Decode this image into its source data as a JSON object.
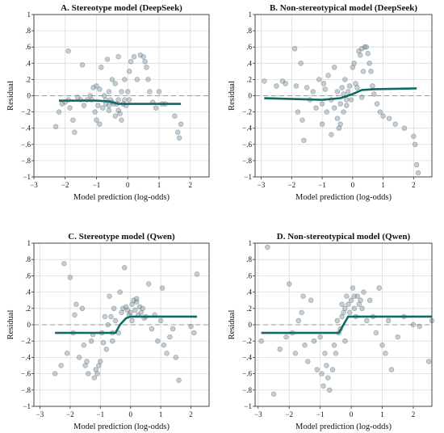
{
  "charts": [
    {
      "title": "A. Stereotype model (DeepSeek)",
      "xlabel": "Model prediction (log-odds)",
      "ylabel": "Residual",
      "xlim": [
        -3,
        2.6
      ],
      "ylim": [
        -1,
        1
      ],
      "xticks": [
        -3,
        -2,
        -1,
        0,
        1,
        2
      ],
      "yticks": [
        -1,
        -0.8,
        -0.6,
        -0.4,
        -0.2,
        0,
        0.2,
        0.4,
        0.6,
        0.8,
        1
      ],
      "points": [
        [
          -2.3,
          -0.38
        ],
        [
          -2.2,
          -0.2
        ],
        [
          -2.1,
          -0.1
        ],
        [
          -2.0,
          -0.08
        ],
        [
          -1.9,
          0.55
        ],
        [
          -1.9,
          -0.05
        ],
        [
          -1.85,
          -0.15
        ],
        [
          -1.75,
          -0.3
        ],
        [
          -1.7,
          -0.45
        ],
        [
          -1.6,
          -0.02
        ],
        [
          -1.5,
          -0.05
        ],
        [
          -1.45,
          0.38
        ],
        [
          -1.4,
          -0.12
        ],
        [
          -1.3,
          -0.05
        ],
        [
          -1.2,
          0.0
        ],
        [
          -1.15,
          -0.05
        ],
        [
          -1.1,
          0.1
        ],
        [
          -1.05,
          -0.2
        ],
        [
          -1.0,
          0.12
        ],
        [
          -1.0,
          -0.3
        ],
        [
          -0.95,
          -0.12
        ],
        [
          -0.9,
          0.08
        ],
        [
          -0.85,
          0.35
        ],
        [
          -0.8,
          -0.15
        ],
        [
          -0.75,
          0.0
        ],
        [
          -0.7,
          -0.05
        ],
        [
          -0.7,
          -0.1
        ],
        [
          -0.65,
          0.45
        ],
        [
          -0.6,
          0.05
        ],
        [
          -0.6,
          -0.18
        ],
        [
          -0.55,
          -0.05
        ],
        [
          -0.5,
          0.2
        ],
        [
          -0.5,
          -0.08
        ],
        [
          -0.45,
          -0.1
        ],
        [
          -0.4,
          0.15
        ],
        [
          -0.4,
          -0.25
        ],
        [
          -0.35,
          -0.1
        ],
        [
          -0.3,
          0.48
        ],
        [
          -0.3,
          -0.05
        ],
        [
          -0.25,
          -0.22
        ],
        [
          -0.2,
          0.05
        ],
        [
          -0.2,
          -0.3
        ],
        [
          -0.15,
          -0.1
        ],
        [
          -0.1,
          -0.05
        ],
        [
          -0.1,
          0.2
        ],
        [
          -0.05,
          -0.12
        ],
        [
          0.0,
          0.05
        ],
        [
          0.05,
          0.3
        ],
        [
          0.1,
          0.42
        ],
        [
          0.2,
          0.48
        ],
        [
          0.3,
          0.2
        ],
        [
          0.4,
          0.5
        ],
        [
          0.5,
          0.48
        ],
        [
          0.55,
          0.42
        ],
        [
          0.6,
          0.35
        ],
        [
          0.65,
          0.2
        ],
        [
          0.7,
          0.05
        ],
        [
          0.8,
          -0.08
        ],
        [
          0.9,
          -0.15
        ],
        [
          1.0,
          0.05
        ],
        [
          1.1,
          -0.1
        ],
        [
          1.2,
          -0.1
        ],
        [
          1.5,
          -0.25
        ],
        [
          1.6,
          -0.45
        ],
        [
          1.65,
          -0.52
        ],
        [
          1.7,
          -0.35
        ],
        [
          -0.9,
          -0.35
        ],
        [
          -0.3,
          -0.18
        ],
        [
          0.05,
          -0.05
        ],
        [
          -0.6,
          -0.12
        ]
      ],
      "curve": [
        [
          -2.2,
          -0.06
        ],
        [
          -1.0,
          -0.06
        ],
        [
          -0.6,
          -0.07
        ],
        [
          -0.3,
          -0.1
        ],
        [
          0.3,
          -0.1
        ],
        [
          1.7,
          -0.1
        ]
      ]
    },
    {
      "title": "B. Non-stereotypical model (DeepSeek)",
      "xlabel": "Model prediction (log-odds)",
      "ylabel": "Residual",
      "xlim": [
        -3.2,
        2.6
      ],
      "ylim": [
        -1,
        1
      ],
      "xticks": [
        -3,
        -2,
        -1,
        0,
        1,
        2
      ],
      "yticks": [
        -1,
        -0.8,
        -0.6,
        -0.4,
        -0.2,
        0,
        0.2,
        0.4,
        0.6,
        0.8,
        1
      ],
      "points": [
        [
          -2.9,
          0.18
        ],
        [
          -2.5,
          0.12
        ],
        [
          -2.3,
          0.18
        ],
        [
          -2.2,
          0.15
        ],
        [
          -1.9,
          0.58
        ],
        [
          -1.85,
          0.12
        ],
        [
          -1.8,
          -0.2
        ],
        [
          -1.7,
          0.4
        ],
        [
          -1.65,
          -0.3
        ],
        [
          -1.6,
          -0.55
        ],
        [
          -1.5,
          0.1
        ],
        [
          -1.4,
          -0.05
        ],
        [
          -1.3,
          0.05
        ],
        [
          -1.2,
          -0.15
        ],
        [
          -1.1,
          0.2
        ],
        [
          -1.0,
          -0.1
        ],
        [
          -1.0,
          -0.35
        ],
        [
          -0.9,
          0.08
        ],
        [
          -0.85,
          -0.2
        ],
        [
          -0.8,
          0.25
        ],
        [
          -0.7,
          -0.05
        ],
        [
          -0.7,
          -0.48
        ],
        [
          -0.6,
          0.35
        ],
        [
          -0.6,
          -0.15
        ],
        [
          -0.5,
          0.05
        ],
        [
          -0.5,
          -0.28
        ],
        [
          -0.45,
          -0.4
        ],
        [
          -0.4,
          -0.1
        ],
        [
          -0.35,
          0.1
        ],
        [
          -0.3,
          0.02
        ],
        [
          -0.3,
          -0.2
        ],
        [
          -0.25,
          0.2
        ],
        [
          -0.2,
          -0.05
        ],
        [
          -0.2,
          -0.12
        ],
        [
          -0.15,
          0.05
        ],
        [
          -0.1,
          0.12
        ],
        [
          -0.05,
          -0.05
        ],
        [
          0.0,
          0.35
        ],
        [
          0.05,
          0.4
        ],
        [
          0.1,
          0.15
        ],
        [
          0.15,
          0.1
        ],
        [
          0.2,
          0.55
        ],
        [
          0.25,
          0.5
        ],
        [
          0.3,
          0.58
        ],
        [
          0.35,
          0.3
        ],
        [
          0.4,
          0.6
        ],
        [
          0.45,
          0.6
        ],
        [
          0.5,
          0.52
        ],
        [
          0.55,
          0.4
        ],
        [
          0.6,
          0.3
        ],
        [
          0.65,
          0.12
        ],
        [
          0.7,
          0.02
        ],
        [
          0.8,
          -0.1
        ],
        [
          0.9,
          -0.2
        ],
        [
          1.0,
          -0.25
        ],
        [
          1.2,
          -0.28
        ],
        [
          1.4,
          -0.35
        ],
        [
          1.7,
          -0.4
        ],
        [
          2.0,
          -0.5
        ],
        [
          2.1,
          -0.85
        ],
        [
          2.15,
          -0.95
        ],
        [
          2.05,
          -0.6
        ],
        [
          -0.95,
          0.15
        ],
        [
          -0.4,
          -0.35
        ],
        [
          0.3,
          -0.02
        ]
      ],
      "curve": [
        [
          -2.9,
          -0.03
        ],
        [
          -1.0,
          -0.05
        ],
        [
          -0.4,
          -0.03
        ],
        [
          0.0,
          0.02
        ],
        [
          0.3,
          0.07
        ],
        [
          0.7,
          0.08
        ],
        [
          2.1,
          0.09
        ]
      ]
    },
    {
      "title": "C. Stereotype model (Qwen)",
      "xlabel": "Model prediction (log-odds)",
      "ylabel": "Residual",
      "xlim": [
        -3.2,
        2.6
      ],
      "ylim": [
        -1,
        1
      ],
      "xticks": [
        -3,
        -2,
        -1,
        0,
        1,
        2
      ],
      "yticks": [
        -1,
        -0.8,
        -0.6,
        -0.4,
        -0.2,
        0,
        0.2,
        0.4,
        0.6,
        0.8,
        1
      ],
      "points": [
        [
          -2.5,
          -0.6
        ],
        [
          -2.3,
          -0.5
        ],
        [
          -2.2,
          0.75
        ],
        [
          -2.1,
          -0.35
        ],
        [
          -2.0,
          0.58
        ],
        [
          -1.9,
          -0.1
        ],
        [
          -1.85,
          0.12
        ],
        [
          -1.8,
          0.25
        ],
        [
          -1.7,
          -0.4
        ],
        [
          -1.6,
          0.2
        ],
        [
          -1.55,
          -0.25
        ],
        [
          -1.5,
          -0.5
        ],
        [
          -1.45,
          -0.45
        ],
        [
          -1.4,
          -0.6
        ],
        [
          -1.3,
          -0.2
        ],
        [
          -1.25,
          -0.12
        ],
        [
          -1.2,
          -0.65
        ],
        [
          -1.15,
          -0.55
        ],
        [
          -1.1,
          -0.6
        ],
        [
          -1.05,
          -0.5
        ],
        [
          -1.0,
          -0.45
        ],
        [
          -0.95,
          -0.1
        ],
        [
          -0.9,
          -0.22
        ],
        [
          -0.85,
          0.1
        ],
        [
          -0.8,
          -0.3
        ],
        [
          -0.75,
          0.0
        ],
        [
          -0.7,
          0.35
        ],
        [
          -0.65,
          0.1
        ],
        [
          -0.6,
          -0.1
        ],
        [
          -0.55,
          0.2
        ],
        [
          -0.5,
          0.05
        ],
        [
          -0.4,
          -0.1
        ],
        [
          -0.3,
          0.15
        ],
        [
          -0.25,
          0.2
        ],
        [
          -0.2,
          0.7
        ],
        [
          -0.15,
          0.22
        ],
        [
          -0.1,
          0.18
        ],
        [
          -0.05,
          0.12
        ],
        [
          0.0,
          0.15
        ],
        [
          0.05,
          0.25
        ],
        [
          0.1,
          0.3
        ],
        [
          0.15,
          0.18
        ],
        [
          0.2,
          0.28
        ],
        [
          0.25,
          0.12
        ],
        [
          0.3,
          0.22
        ],
        [
          0.35,
          0.15
        ],
        [
          0.4,
          0.2
        ],
        [
          0.45,
          0.08
        ],
        [
          0.5,
          0.1
        ],
        [
          0.6,
          0.5
        ],
        [
          0.7,
          -0.05
        ],
        [
          0.8,
          0.12
        ],
        [
          0.9,
          -0.2
        ],
        [
          1.0,
          0.05
        ],
        [
          1.05,
          0.45
        ],
        [
          1.1,
          -0.25
        ],
        [
          1.2,
          -0.35
        ],
        [
          1.3,
          -0.15
        ],
        [
          1.4,
          -0.05
        ],
        [
          1.5,
          -0.4
        ],
        [
          1.6,
          -0.68
        ],
        [
          2.0,
          -0.02
        ],
        [
          2.1,
          -0.1
        ],
        [
          2.2,
          0.62
        ],
        [
          -0.35,
          0.4
        ],
        [
          0.05,
          0.05
        ],
        [
          -0.6,
          -0.2
        ],
        [
          0.2,
          0.32
        ]
      ],
      "curve": [
        [
          -2.5,
          -0.1
        ],
        [
          -0.5,
          -0.1
        ],
        [
          -0.35,
          0.0
        ],
        [
          -0.15,
          0.08
        ],
        [
          0.0,
          0.1
        ],
        [
          2.2,
          0.1
        ]
      ]
    },
    {
      "title": "D. Non-stereotypical model (Qwen)",
      "xlabel": "Model prediction (log-odds)",
      "ylabel": "Residual",
      "xlim": [
        -3.1,
        2.6
      ],
      "ylim": [
        -1,
        1
      ],
      "xticks": [
        -3,
        -2,
        -1,
        0,
        1,
        2
      ],
      "yticks": [
        -1,
        -0.8,
        -0.6,
        -0.4,
        -0.2,
        0,
        0.2,
        0.4,
        0.6,
        0.8,
        1
      ],
      "points": [
        [
          -2.9,
          -0.2
        ],
        [
          -2.7,
          0.95
        ],
        [
          -2.5,
          -0.85
        ],
        [
          -2.3,
          -0.3
        ],
        [
          -2.1,
          -0.15
        ],
        [
          -2.0,
          0.5
        ],
        [
          -1.9,
          -0.1
        ],
        [
          -1.8,
          -0.35
        ],
        [
          -1.7,
          0.05
        ],
        [
          -1.6,
          0.15
        ],
        [
          -1.55,
          0.35
        ],
        [
          -1.5,
          -0.25
        ],
        [
          -1.4,
          -0.45
        ],
        [
          -1.3,
          0.3
        ],
        [
          -1.2,
          -0.2
        ],
        [
          -1.1,
          -0.55
        ],
        [
          -1.0,
          -0.15
        ],
        [
          -0.95,
          -0.6
        ],
        [
          -0.9,
          -0.75
        ],
        [
          -0.85,
          -0.35
        ],
        [
          -0.8,
          -0.5
        ],
        [
          -0.75,
          -0.65
        ],
        [
          -0.7,
          -0.8
        ],
        [
          -0.6,
          -0.55
        ],
        [
          -0.55,
          -0.25
        ],
        [
          -0.5,
          -0.35
        ],
        [
          -0.45,
          0.05
        ],
        [
          -0.4,
          -0.1
        ],
        [
          -0.35,
          -0.05
        ],
        [
          -0.3,
          0.1
        ],
        [
          -0.25,
          0.15
        ],
        [
          -0.2,
          0.2
        ],
        [
          -0.15,
          0.35
        ],
        [
          -0.1,
          0.25
        ],
        [
          -0.05,
          0.15
        ],
        [
          0.0,
          0.3
        ],
        [
          0.05,
          0.45
        ],
        [
          0.1,
          0.2
        ],
        [
          0.15,
          0.1
        ],
        [
          0.2,
          0.35
        ],
        [
          0.25,
          0.25
        ],
        [
          0.3,
          0.3
        ],
        [
          0.35,
          0.2
        ],
        [
          0.4,
          0.4
        ],
        [
          0.5,
          0.05
        ],
        [
          0.6,
          0.3
        ],
        [
          0.7,
          0.1
        ],
        [
          0.8,
          -0.1
        ],
        [
          0.9,
          0.45
        ],
        [
          1.0,
          -0.25
        ],
        [
          1.1,
          -0.35
        ],
        [
          1.2,
          0.05
        ],
        [
          1.3,
          -0.55
        ],
        [
          1.5,
          -0.15
        ],
        [
          1.7,
          0.1
        ],
        [
          2.0,
          0.0
        ],
        [
          2.2,
          -0.02
        ],
        [
          2.5,
          -0.45
        ],
        [
          2.6,
          0.05
        ],
        [
          -0.3,
          0.25
        ],
        [
          0.1,
          0.35
        ],
        [
          -0.2,
          -0.2
        ]
      ],
      "curve": [
        [
          -2.9,
          -0.1
        ],
        [
          -0.4,
          -0.1
        ],
        [
          -0.25,
          0.0
        ],
        [
          -0.1,
          0.1
        ],
        [
          2.6,
          0.1
        ]
      ]
    }
  ]
}
